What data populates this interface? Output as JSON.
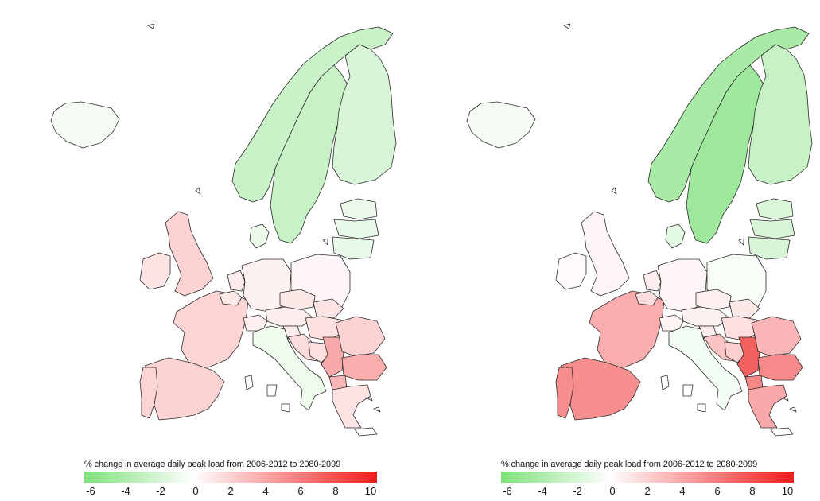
{
  "colors": {
    "scale_min": "#7ee07a",
    "scale_mid": "#ffffff",
    "scale_max": "#ee1c1c",
    "border": "#2b2b2b"
  },
  "scale": {
    "min": -6,
    "max": 10
  },
  "panels": [
    {
      "legend_title": "% change in average daily peak load from 2006-2012 to 2080-2099",
      "ticks": [
        "-6",
        "-4",
        "-2",
        "0",
        "2",
        "4",
        "6",
        "8",
        "10"
      ],
      "values": {
        "iceland": -0.5,
        "norway": -2.5,
        "sweden": -2.6,
        "finland": -1.8,
        "estonia": -0.9,
        "latvia": -1.1,
        "lithuania": -1.1,
        "denmark": -0.9,
        "uk": 2.0,
        "ireland": 1.2,
        "france": 1.9,
        "spain": 2.0,
        "portugal": 1.9,
        "belgium": 1.0,
        "netherlands": 0.9,
        "germany": 0.6,
        "poland": 0.4,
        "czech": 1.0,
        "slovakia": 1.2,
        "austria": 0.8,
        "switzerland": 0.7,
        "hungary": 1.3,
        "slovenia": 0.8,
        "croatia": 1.6,
        "bosnia": 1.4,
        "serbia": 3.8,
        "romania": 2.0,
        "bulgaria": 3.6,
        "macedonia": 3.2,
        "greece": 1.2,
        "italy": -0.8
      }
    },
    {
      "legend_title": "% change in average daily peak load from 2006-2012 to 2080-2099",
      "ticks": [
        "-6",
        "-4",
        "-2",
        "0",
        "2",
        "4",
        "6",
        "8",
        "10"
      ],
      "values": {
        "iceland": -0.5,
        "norway": -4.0,
        "sweden": -4.5,
        "finland": -2.6,
        "estonia": -1.7,
        "latvia": -1.8,
        "lithuania": -1.8,
        "denmark": -1.3,
        "uk": 0.4,
        "ireland": 0.2,
        "france": 3.6,
        "spain": 5.0,
        "portugal": 5.0,
        "belgium": 1.5,
        "netherlands": 0.8,
        "germany": 0.4,
        "poland": -0.3,
        "czech": 0.7,
        "slovakia": 1.0,
        "austria": 0.6,
        "switzerland": 0.5,
        "hungary": 1.4,
        "slovenia": 0.9,
        "croatia": 2.6,
        "bosnia": 2.1,
        "serbia": 7.0,
        "romania": 3.2,
        "bulgaria": 5.2,
        "macedonia": 5.3,
        "greece": 3.8,
        "italy": -0.6
      }
    }
  ]
}
